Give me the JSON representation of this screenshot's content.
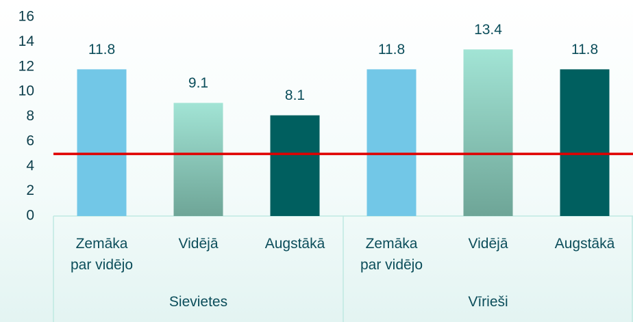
{
  "chart_data": {
    "type": "bar",
    "categories": [
      "Zemāka\npar vidējo",
      "Vidējā",
      "Augstākā",
      "Zemāka\npar vidējo",
      "Vidējā",
      "Augstākā"
    ],
    "groups": [
      "Sievietes",
      "Vīrieši"
    ],
    "values": [
      11.8,
      9.1,
      8.1,
      11.8,
      13.4,
      11.8
    ],
    "colors": [
      "#72c7e7",
      [
        "#a2e4d5",
        "#6ea597"
      ],
      "#005f5f",
      "#72c7e7",
      [
        "#a2e4d5",
        "#6ea597"
      ],
      "#005f5f"
    ],
    "ylim": [
      0,
      16
    ],
    "yticks": [
      0,
      2,
      4,
      6,
      8,
      10,
      12,
      14,
      16
    ],
    "reference_line": {
      "value": 5,
      "color": "#e00000"
    }
  }
}
